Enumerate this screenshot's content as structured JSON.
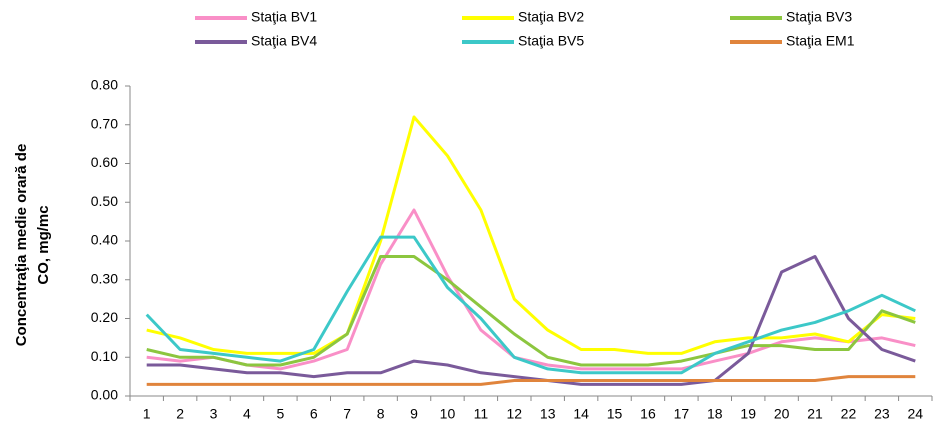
{
  "chart_data": {
    "type": "line",
    "y_label": [
      "Concentraţia medie orară de",
      "CO, mg/mc"
    ],
    "categories": [
      "1",
      "2",
      "3",
      "4",
      "5",
      "6",
      "7",
      "8",
      "9",
      "10",
      "11",
      "12",
      "13",
      "14",
      "15",
      "16",
      "17",
      "18",
      "19",
      "20",
      "21",
      "22",
      "23",
      "24"
    ],
    "series": [
      {
        "name": "Staţia BV1",
        "color": "#f98fc7",
        "values": [
          0.1,
          0.09,
          0.1,
          0.08,
          0.07,
          0.09,
          0.12,
          0.34,
          0.48,
          0.31,
          0.17,
          0.1,
          0.08,
          0.07,
          0.07,
          0.07,
          0.07,
          0.09,
          0.11,
          0.14,
          0.15,
          0.14,
          0.15,
          0.13
        ]
      },
      {
        "name": "Staţia BV2",
        "color": "#ffff00",
        "values": [
          0.17,
          0.15,
          0.12,
          0.11,
          0.11,
          0.11,
          0.16,
          0.4,
          0.72,
          0.62,
          0.48,
          0.25,
          0.17,
          0.12,
          0.12,
          0.11,
          0.11,
          0.14,
          0.15,
          0.15,
          0.16,
          0.14,
          0.21,
          0.2
        ]
      },
      {
        "name": "Staţia BV3",
        "color": "#8cc63f",
        "values": [
          0.12,
          0.1,
          0.1,
          0.08,
          0.08,
          0.1,
          0.16,
          0.36,
          0.36,
          0.3,
          0.23,
          0.16,
          0.1,
          0.08,
          0.08,
          0.08,
          0.09,
          0.11,
          0.13,
          0.13,
          0.12,
          0.12,
          0.22,
          0.19
        ]
      },
      {
        "name": "Staţia BV4",
        "color": "#7a5a9a",
        "values": [
          0.08,
          0.08,
          0.07,
          0.06,
          0.06,
          0.05,
          0.06,
          0.06,
          0.09,
          0.08,
          0.06,
          0.05,
          0.04,
          0.03,
          0.03,
          0.03,
          0.03,
          0.04,
          0.11,
          0.32,
          0.36,
          0.2,
          0.12,
          0.09
        ]
      },
      {
        "name": "Staţia BV5",
        "color": "#3cc8c8",
        "values": [
          0.21,
          0.12,
          0.11,
          0.1,
          0.09,
          0.12,
          0.27,
          0.41,
          0.41,
          0.28,
          0.2,
          0.1,
          0.07,
          0.06,
          0.06,
          0.06,
          0.06,
          0.11,
          0.14,
          0.17,
          0.19,
          0.22,
          0.26,
          0.22
        ]
      },
      {
        "name": "Staţia EM1",
        "color": "#e0843c",
        "values": [
          0.03,
          0.03,
          0.03,
          0.03,
          0.03,
          0.03,
          0.03,
          0.03,
          0.03,
          0.03,
          0.03,
          0.04,
          0.04,
          0.04,
          0.04,
          0.04,
          0.04,
          0.04,
          0.04,
          0.04,
          0.04,
          0.05,
          0.05,
          0.05
        ]
      }
    ],
    "ylim": [
      0,
      0.8
    ],
    "yticks": [
      {
        "value": 0,
        "label": "0.00"
      },
      {
        "value": 0.1,
        "label": "0.10"
      },
      {
        "value": 0.2,
        "label": "0.20"
      },
      {
        "value": 0.3,
        "label": "0.30"
      },
      {
        "value": 0.4,
        "label": "0.40"
      },
      {
        "value": 0.5,
        "label": "0.50"
      },
      {
        "value": 0.6,
        "label": "0.60"
      },
      {
        "value": 0.7,
        "label": "0.70"
      },
      {
        "value": 0.8,
        "label": "0.80"
      }
    ],
    "grid": false
  }
}
